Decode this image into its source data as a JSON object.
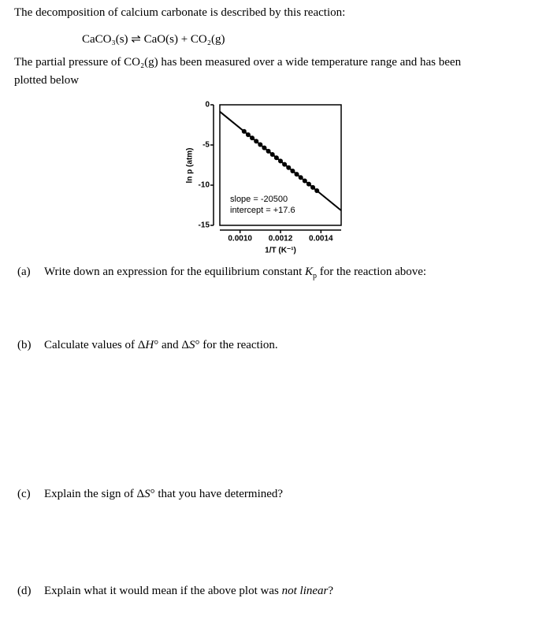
{
  "intro": "The decomposition of calcium carbonate is described by this reaction:",
  "reaction": "CaCO₃(s) ⇌ CaO(s) + CO₂(g)",
  "description": [
    "The partial pressure of CO₂(g) has been measured over a wide temperature range and has been",
    "plotted below"
  ],
  "chart_data": {
    "type": "scatter",
    "x_label": "1/T (K⁻¹)",
    "y_label": "ln p (atm)",
    "annotations": [
      "slope = -20500",
      "intercept = +17.6"
    ],
    "xlim": [
      0.0009,
      0.0015
    ],
    "ylim": [
      -15,
      0
    ],
    "xticks": [
      {
        "value": 0.001,
        "label": "0.0010"
      },
      0.0012,
      0.0014
    ],
    "yticks": [
      0,
      -5,
      -10,
      -15
    ],
    "color": "#000000",
    "x": [
      0.00102,
      0.00104,
      0.00106,
      0.00108,
      0.0011,
      0.00112,
      0.00114,
      0.00116,
      0.00118,
      0.0012,
      0.00122,
      0.00124,
      0.00126,
      0.00128,
      0.0013,
      0.00132,
      0.00134,
      0.00136,
      0.00138
    ],
    "values": [
      -3.31,
      -3.72,
      -4.13,
      -4.54,
      -4.95,
      -5.36,
      -5.77,
      -6.18,
      -6.59,
      -7.0,
      -7.41,
      -7.82,
      -8.23,
      -8.64,
      -9.05,
      -9.46,
      -9.87,
      -10.28,
      -10.69
    ],
    "fit": {
      "x": [
        0.0009,
        0.0015
      ],
      "values": [
        -0.85,
        -13.15
      ]
    }
  },
  "questions": [
    {
      "label": "(a)",
      "parts": [
        "Write down an expression for the equilibrium constant ",
        "K",
        "p",
        " for the reaction above:"
      ]
    },
    {
      "label": "(b)",
      "parts": [
        "Calculate values of Δ",
        "H",
        "° and Δ",
        "S",
        "° for the reaction."
      ]
    },
    {
      "label": "(c)",
      "parts": [
        "Explain the sign of Δ",
        "S",
        "° that you have determined?"
      ]
    },
    {
      "label": "(d)",
      "parts": [
        "Explain what it would mean if the above plot was ",
        "not linear",
        "?"
      ]
    }
  ]
}
